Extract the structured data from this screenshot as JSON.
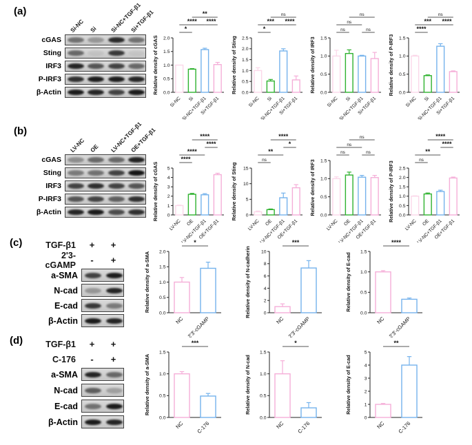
{
  "figure": {
    "panels": [
      {
        "label": "(a)",
        "blot": {
          "lanes": [
            "Si-NC",
            "Si",
            "Si-NC+TGF-β1",
            "Si+TGF-β1"
          ],
          "rows": [
            {
              "protein": "cGAS",
              "bands": [
                0.5,
                0.3,
                0.88,
                0.5
              ]
            },
            {
              "protein": "Sting",
              "bands": [
                0.55,
                0.07,
                0.8,
                0.06
              ]
            },
            {
              "protein": "IRF3",
              "bands": [
                0.9,
                0.65,
                0.75,
                0.55
              ]
            },
            {
              "protein": "P-IRF3",
              "bands": [
                0.85,
                0.95,
                0.95,
                0.9
              ]
            },
            {
              "protein": "β-Actin",
              "bands": [
                0.95,
                0.9,
                0.75,
                0.95
              ]
            }
          ]
        },
        "charts": [
          0,
          1,
          2,
          3
        ]
      },
      {
        "label": "(b)",
        "blot": {
          "lanes": [
            "LV-NC",
            "OE",
            "LV-NC+TGF-β1",
            "OE+TGF-β1"
          ],
          "rows": [
            {
              "protein": "cGAS",
              "bands": [
                0.35,
                0.55,
                0.55,
                0.92
              ]
            },
            {
              "protein": "Sting",
              "bands": [
                0.45,
                0.5,
                0.75,
                0.98
              ]
            },
            {
              "protein": "IRF3",
              "bands": [
                0.75,
                0.85,
                0.75,
                0.65
              ]
            },
            {
              "protein": "P-IRF3",
              "bands": [
                0.65,
                0.75,
                0.6,
                0.85
              ]
            },
            {
              "protein": "β-Actin",
              "bands": [
                0.9,
                0.95,
                0.7,
                0.85
              ]
            }
          ]
        },
        "charts": [
          4,
          5,
          6,
          7
        ]
      },
      {
        "label": "(c)",
        "blot": {
          "conditions": [
            {
              "name": "TGF-β1",
              "values": [
                "+",
                "+"
              ]
            },
            {
              "name": "2'3-cGAMP",
              "values": [
                "-",
                "+"
              ]
            }
          ],
          "rows": [
            {
              "protein": "a-SMA",
              "bands": [
                0.75,
                0.95
              ]
            },
            {
              "protein": "N-cad",
              "bands": [
                0.3,
                0.9
              ]
            },
            {
              "protein": "E-cad",
              "bands": [
                0.8,
                0.45
              ]
            },
            {
              "protein": "β-Actin",
              "bands": [
                0.95,
                0.9
              ]
            }
          ]
        },
        "charts": [
          8,
          9,
          10
        ]
      },
      {
        "label": "(d)",
        "blot": {
          "conditions": [
            {
              "name": "TGF-β1",
              "values": [
                "+",
                "+"
              ]
            },
            {
              "name": "C-176",
              "values": [
                "-",
                "+"
              ]
            }
          ],
          "rows": [
            {
              "protein": "a-SMA",
              "bands": [
                0.9,
                0.55
              ]
            },
            {
              "protein": "N-cad",
              "bands": [
                0.6,
                0.25
              ]
            },
            {
              "protein": "E-cad",
              "bands": [
                0.5,
                0.95
              ]
            },
            {
              "protein": "β-Actin",
              "bands": [
                0.95,
                0.9
              ]
            }
          ]
        },
        "charts": [
          11,
          12,
          13
        ]
      }
    ]
  },
  "chart_data": [
    {
      "type": "bar",
      "ylabel": "Relative density of cGAS",
      "ylim": [
        0,
        2.0
      ],
      "yticks": [
        0,
        0.5,
        1.0,
        1.5,
        2.0
      ],
      "decimals": 1,
      "categories": [
        "Si-NC",
        "Si",
        "Si-NC+TGF-β1",
        "Si+TGF-β1"
      ],
      "values": [
        1.0,
        0.85,
        1.57,
        1.02
      ],
      "errors": [
        0,
        0.02,
        0.05,
        0.08
      ],
      "bar_colors": [
        "#fbd7e9",
        "#2eb22e",
        "#74b2ec",
        "#f5aed8"
      ],
      "significance": [
        {
          "x1": 0,
          "x2": 1,
          "label": "*",
          "row": 0
        },
        {
          "x1": 0,
          "x2": 2,
          "label": "****",
          "row": 1
        },
        {
          "x1": 2,
          "x2": 3,
          "label": "****",
          "row": 1
        },
        {
          "x1": 1,
          "x2": 3,
          "label": "**",
          "row": 2
        }
      ]
    },
    {
      "type": "bar",
      "ylabel": "Relative density of Sting",
      "ylim": [
        0,
        2.5
      ],
      "yticks": [
        0,
        0.5,
        1.0,
        1.5,
        2.0,
        2.5
      ],
      "decimals": 1,
      "categories": [
        "Si-NC",
        "Si",
        "Si-NC+TGF-β1",
        "Si+TGF-β1"
      ],
      "values": [
        1.0,
        0.52,
        1.9,
        0.57
      ],
      "errors": [
        0.13,
        0.07,
        0.1,
        0.18
      ],
      "bar_colors": [
        "#fbd7e9",
        "#2eb22e",
        "#74b2ec",
        "#f5aed8"
      ],
      "significance": [
        {
          "x1": 0,
          "x2": 1,
          "label": "*",
          "row": 0
        },
        {
          "x1": 0,
          "x2": 2,
          "label": "***",
          "row": 1
        },
        {
          "x1": 2,
          "x2": 3,
          "label": "****",
          "row": 1
        },
        {
          "x1": 1,
          "x2": 3,
          "label": "ns",
          "row": 2
        }
      ]
    },
    {
      "type": "bar",
      "ylabel": "Relative density of IRF3",
      "ylim": [
        0,
        1.5
      ],
      "yticks": [
        0,
        0.5,
        1.0,
        1.5
      ],
      "decimals": 1,
      "categories": [
        "Si-NC",
        "Si",
        "Si-NC+TGF-β1",
        "Si+TGF-β1"
      ],
      "values": [
        1.0,
        1.07,
        1.0,
        0.93
      ],
      "errors": [
        0.16,
        0.1,
        0.02,
        0.17
      ],
      "bar_colors": [
        "#fbd7e9",
        "#2eb22e",
        "#74b2ec",
        "#f5aed8"
      ],
      "significance": [
        {
          "x1": 0,
          "x2": 1,
          "label": "ns",
          "row": 0
        },
        {
          "x1": 2,
          "x2": 3,
          "label": "ns",
          "row": 0
        },
        {
          "x1": 0,
          "x2": 2,
          "label": "ns",
          "row": 1
        },
        {
          "x1": 1,
          "x2": 3,
          "label": "ns",
          "row": 2
        }
      ]
    },
    {
      "type": "bar",
      "ylabel": "Relative density of P-IRF3",
      "ylim": [
        0,
        1.5
      ],
      "yticks": [
        0,
        0.5,
        1.0,
        1.5
      ],
      "decimals": 1,
      "categories": [
        "Si-NC",
        "Si",
        "Si-NC+TGF-β1",
        "Si+TGF-β1"
      ],
      "values": [
        1.0,
        0.46,
        1.27,
        0.57
      ],
      "errors": [
        0.02,
        0.02,
        0.07,
        0.02
      ],
      "bar_colors": [
        "#fbd7e9",
        "#2eb22e",
        "#74b2ec",
        "#f5aed8"
      ],
      "significance": [
        {
          "x1": 0,
          "x2": 1,
          "label": "****",
          "row": 0
        },
        {
          "x1": 0,
          "x2": 2,
          "label": "***",
          "row": 1
        },
        {
          "x1": 2,
          "x2": 3,
          "label": "****",
          "row": 1
        },
        {
          "x1": 1,
          "x2": 3,
          "label": "ns",
          "row": 2
        }
      ]
    },
    {
      "type": "bar",
      "ylabel": "Relative density of cGAS",
      "ylim": [
        0,
        5
      ],
      "yticks": [
        0,
        1,
        2,
        3,
        4,
        5
      ],
      "decimals": 0,
      "categories": [
        "LV-NC",
        "OE",
        "LV-NC+TGF-β1",
        "OE+TGF-β1"
      ],
      "values": [
        1.0,
        2.2,
        2.15,
        4.3
      ],
      "errors": [
        0.05,
        0.1,
        0.12,
        0.15
      ],
      "bar_colors": [
        "#fbd7e9",
        "#2eb22e",
        "#74b2ec",
        "#f5aed8"
      ],
      "significance": [
        {
          "x1": 0,
          "x2": 1,
          "label": "****",
          "row": 0
        },
        {
          "x1": 0,
          "x2": 2,
          "label": "****",
          "row": 1
        },
        {
          "x1": 2,
          "x2": 3,
          "label": "****",
          "row": 2
        },
        {
          "x1": 1,
          "x2": 3,
          "label": "****",
          "row": 3
        }
      ]
    },
    {
      "type": "bar",
      "ylabel": "Relative density of Sting",
      "ylim": [
        0,
        15
      ],
      "yticks": [
        0,
        5,
        10,
        15
      ],
      "decimals": 0,
      "categories": [
        "LV-NC",
        "OE",
        "LV-NC+TGF-β1",
        "OE+TGF-β1"
      ],
      "values": [
        1.0,
        1.7,
        5.5,
        8.7
      ],
      "errors": [
        0.25,
        0.2,
        1.5,
        1.0
      ],
      "bar_colors": [
        "#fbd7e9",
        "#2eb22e",
        "#74b2ec",
        "#f5aed8"
      ],
      "significance": [
        {
          "x1": 0,
          "x2": 1,
          "label": "ns",
          "row": 0
        },
        {
          "x1": 0,
          "x2": 2,
          "label": "**",
          "row": 1
        },
        {
          "x1": 2,
          "x2": 3,
          "label": "*",
          "row": 2
        },
        {
          "x1": 1,
          "x2": 3,
          "label": "****",
          "row": 3
        }
      ]
    },
    {
      "type": "bar",
      "ylabel": "Relative density of IRF3",
      "ylim": [
        0,
        1.5
      ],
      "yticks": [
        0,
        0.5,
        1.0,
        1.5
      ],
      "decimals": 1,
      "categories": [
        "LV-NC",
        "OE",
        "LV-NC+TGF-β1",
        "OE+TGF-β1"
      ],
      "values": [
        1.0,
        1.1,
        1.04,
        1.03
      ],
      "errors": [
        0.05,
        0.08,
        0.05,
        0.06
      ],
      "bar_colors": [
        "#fbd7e9",
        "#2eb22e",
        "#74b2ec",
        "#f5aed8"
      ],
      "significance": [
        {
          "x1": 0,
          "x2": 1,
          "label": "ns",
          "row": 0
        },
        {
          "x1": 2,
          "x2": 3,
          "label": "ns",
          "row": 0
        },
        {
          "x1": 0,
          "x2": 2,
          "label": "ns",
          "row": 1
        },
        {
          "x1": 1,
          "x2": 3,
          "label": "ns",
          "row": 2
        }
      ]
    },
    {
      "type": "bar",
      "ylabel": "Relative density of P-IRF3",
      "ylim": [
        0,
        2.5
      ],
      "yticks": [
        0,
        0.5,
        1.0,
        1.5,
        2.0,
        2.5
      ],
      "decimals": 1,
      "categories": [
        "LV-NC",
        "OE",
        "LV-NC+TGF-β1",
        "OE+TGF-β1"
      ],
      "values": [
        1.0,
        1.12,
        1.25,
        1.97
      ],
      "errors": [
        0.02,
        0.05,
        0.07,
        0.05
      ],
      "bar_colors": [
        "#fbd7e9",
        "#2eb22e",
        "#74b2ec",
        "#f5aed8"
      ],
      "significance": [
        {
          "x1": 0,
          "x2": 1,
          "label": "ns",
          "row": 0
        },
        {
          "x1": 0,
          "x2": 2,
          "label": "**",
          "row": 1
        },
        {
          "x1": 2,
          "x2": 3,
          "label": "****",
          "row": 2
        },
        {
          "x1": 1,
          "x2": 3,
          "label": "****",
          "row": 3
        }
      ]
    },
    {
      "type": "bar",
      "ylabel": "Relative density of a-SMA",
      "ylim": [
        0,
        2.0
      ],
      "yticks": [
        0,
        0.5,
        1.0,
        1.5,
        2.0
      ],
      "decimals": 1,
      "categories": [
        "NC",
        "2'3'-cGAMP"
      ],
      "values": [
        1.0,
        1.45
      ],
      "errors": [
        0.15,
        0.2
      ],
      "bar_colors": [
        "#f5aed8",
        "#74b2ec"
      ],
      "significance": [
        {
          "x1": 0,
          "x2": 1,
          "label": "*",
          "row": 0
        }
      ]
    },
    {
      "type": "bar",
      "ylabel": "Relative density of N-cadherin",
      "ylim": [
        0,
        10
      ],
      "yticks": [
        0,
        2,
        4,
        6,
        8,
        10
      ],
      "decimals": 0,
      "categories": [
        "NC",
        "2'3'-cGAMP"
      ],
      "values": [
        1.0,
        7.3
      ],
      "errors": [
        0.45,
        1.2
      ],
      "bar_colors": [
        "#f5aed8",
        "#74b2ec"
      ],
      "significance": [
        {
          "x1": 0,
          "x2": 1,
          "label": "***",
          "row": 0
        }
      ]
    },
    {
      "type": "bar",
      "ylabel": "Relative density of E-cad",
      "ylim": [
        0,
        1.5
      ],
      "yticks": [
        0,
        0.5,
        1.0,
        1.5
      ],
      "decimals": 1,
      "categories": [
        "NC",
        "2'3'-cGAMP"
      ],
      "values": [
        1.0,
        0.33
      ],
      "errors": [
        0.03,
        0.03
      ],
      "bar_colors": [
        "#f5aed8",
        "#74b2ec"
      ],
      "significance": [
        {
          "x1": 0,
          "x2": 1,
          "label": "****",
          "row": 0
        }
      ]
    },
    {
      "type": "bar",
      "ylabel": "Relative density of a-SMA",
      "ylim": [
        0,
        1.5
      ],
      "yticks": [
        0,
        0.5,
        1.0,
        1.5
      ],
      "decimals": 1,
      "categories": [
        "NC",
        "C-176"
      ],
      "values": [
        1.0,
        0.49
      ],
      "errors": [
        0.05,
        0.06
      ],
      "bar_colors": [
        "#f5aed8",
        "#74b2ec"
      ],
      "significance": [
        {
          "x1": 0,
          "x2": 1,
          "label": "***",
          "row": 0
        }
      ]
    },
    {
      "type": "bar",
      "ylabel": "Relative density of N-cad",
      "ylim": [
        0,
        1.5
      ],
      "yticks": [
        0,
        0.5,
        1.0,
        1.5
      ],
      "decimals": 1,
      "categories": [
        "NC",
        "C-176"
      ],
      "values": [
        1.0,
        0.22
      ],
      "errors": [
        0.3,
        0.12
      ],
      "bar_colors": [
        "#f5aed8",
        "#74b2ec"
      ],
      "significance": [
        {
          "x1": 0,
          "x2": 1,
          "label": "*",
          "row": 0
        }
      ]
    },
    {
      "type": "bar",
      "ylabel": "Relative density of E-cad",
      "ylim": [
        0,
        5
      ],
      "yticks": [
        0,
        1,
        2,
        3,
        4,
        5
      ],
      "decimals": 0,
      "categories": [
        "NC",
        "C-176"
      ],
      "values": [
        1.0,
        4.0
      ],
      "errors": [
        0.07,
        0.65
      ],
      "bar_colors": [
        "#f5aed8",
        "#74b2ec"
      ],
      "significance": [
        {
          "x1": 0,
          "x2": 1,
          "label": "**",
          "row": 0
        }
      ]
    }
  ]
}
